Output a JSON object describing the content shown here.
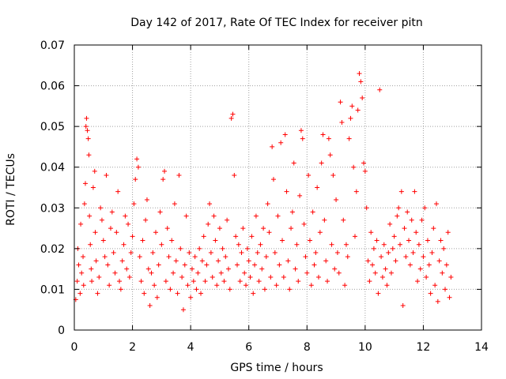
{
  "chart_data": {
    "type": "scatter",
    "title": "Day 142 of 2017, Rate Of TEC Index for receiver pitn",
    "xlabel": "GPS time / hours",
    "ylabel": "ROTI / TECUs",
    "xlim": [
      0,
      14
    ],
    "ylim": [
      0,
      0.07
    ],
    "grid": true,
    "marker": "+",
    "colors": {
      "points": "#ff0000",
      "grid": "#a0a0a0",
      "axes": "#000000"
    },
    "xticks": [
      {
        "value": 0,
        "label": "0"
      },
      {
        "value": 2,
        "label": "2"
      },
      {
        "value": 4,
        "label": "4"
      },
      {
        "value": 6,
        "label": "6"
      },
      {
        "value": 8,
        "label": "8"
      },
      {
        "value": 10,
        "label": "10"
      },
      {
        "value": 12,
        "label": "12"
      },
      {
        "value": 14,
        "label": "14"
      }
    ],
    "yticks": [
      {
        "value": 0,
        "label": "0"
      },
      {
        "value": 0.01,
        "label": "0.01"
      },
      {
        "value": 0.02,
        "label": "0.02"
      },
      {
        "value": 0.03,
        "label": "0.03"
      },
      {
        "value": 0.04,
        "label": "0.04"
      },
      {
        "value": 0.05,
        "label": "0.05"
      },
      {
        "value": 0.06,
        "label": "0.06"
      },
      {
        "value": 0.07,
        "label": "0.07"
      }
    ],
    "series": [
      {
        "name": "ROTI",
        "points": [
          [
            0.05,
            0.0075
          ],
          [
            0.1,
            0.012
          ],
          [
            0.12,
            0.02
          ],
          [
            0.15,
            0.016
          ],
          [
            0.2,
            0.009
          ],
          [
            0.22,
            0.026
          ],
          [
            0.25,
            0.014
          ],
          [
            0.3,
            0.018
          ],
          [
            0.32,
            0.011
          ],
          [
            0.35,
            0.031
          ],
          [
            0.38,
            0.036
          ],
          [
            0.4,
            0.05
          ],
          [
            0.42,
            0.052
          ],
          [
            0.45,
            0.049
          ],
          [
            0.48,
            0.047
          ],
          [
            0.5,
            0.043
          ],
          [
            0.52,
            0.028
          ],
          [
            0.55,
            0.021
          ],
          [
            0.58,
            0.015
          ],
          [
            0.6,
            0.012
          ],
          [
            0.65,
            0.035
          ],
          [
            0.7,
            0.039
          ],
          [
            0.72,
            0.024
          ],
          [
            0.75,
            0.017
          ],
          [
            0.8,
            0.009
          ],
          [
            0.85,
            0.013
          ],
          [
            0.9,
            0.03
          ],
          [
            0.95,
            0.027
          ],
          [
            1.0,
            0.022
          ],
          [
            1.05,
            0.018
          ],
          [
            1.1,
            0.038
          ],
          [
            1.15,
            0.016
          ],
          [
            1.2,
            0.011
          ],
          [
            1.25,
            0.025
          ],
          [
            1.3,
            0.029
          ],
          [
            1.35,
            0.019
          ],
          [
            1.4,
            0.014
          ],
          [
            1.45,
            0.024
          ],
          [
            1.5,
            0.034
          ],
          [
            1.55,
            0.012
          ],
          [
            1.6,
            0.01
          ],
          [
            1.65,
            0.017
          ],
          [
            1.7,
            0.021
          ],
          [
            1.75,
            0.028
          ],
          [
            1.8,
            0.015
          ],
          [
            1.85,
            0.026
          ],
          [
            1.9,
            0.013
          ],
          [
            1.95,
            0.019
          ],
          [
            2.0,
            0.023
          ],
          [
            2.05,
            0.031
          ],
          [
            2.1,
            0.037
          ],
          [
            2.15,
            0.042
          ],
          [
            2.2,
            0.04
          ],
          [
            2.25,
            0.018
          ],
          [
            2.3,
            0.012
          ],
          [
            2.35,
            0.022
          ],
          [
            2.4,
            0.009
          ],
          [
            2.45,
            0.027
          ],
          [
            2.5,
            0.032
          ],
          [
            2.55,
            0.015
          ],
          [
            2.6,
            0.006
          ],
          [
            2.65,
            0.014
          ],
          [
            2.7,
            0.019
          ],
          [
            2.75,
            0.011
          ],
          [
            2.8,
            0.024
          ],
          [
            2.85,
            0.008
          ],
          [
            2.9,
            0.016
          ],
          [
            2.95,
            0.029
          ],
          [
            3.0,
            0.021
          ],
          [
            3.05,
            0.037
          ],
          [
            3.1,
            0.039
          ],
          [
            3.15,
            0.012
          ],
          [
            3.2,
            0.025
          ],
          [
            3.25,
            0.018
          ],
          [
            3.3,
            0.01
          ],
          [
            3.35,
            0.022
          ],
          [
            3.4,
            0.014
          ],
          [
            3.45,
            0.031
          ],
          [
            3.5,
            0.017
          ],
          [
            3.55,
            0.009
          ],
          [
            3.6,
            0.038
          ],
          [
            3.65,
            0.02
          ],
          [
            3.7,
            0.013
          ],
          [
            3.75,
            0.005
          ],
          [
            3.8,
            0.016
          ],
          [
            3.85,
            0.028
          ],
          [
            3.9,
            0.011
          ],
          [
            3.95,
            0.019
          ],
          [
            4.0,
            0.008
          ],
          [
            4.05,
            0.015
          ],
          [
            4.1,
            0.012
          ],
          [
            4.15,
            0.018
          ],
          [
            4.2,
            0.01
          ],
          [
            4.25,
            0.014
          ],
          [
            4.3,
            0.02
          ],
          [
            4.35,
            0.009
          ],
          [
            4.4,
            0.017
          ],
          [
            4.45,
            0.023
          ],
          [
            4.5,
            0.012
          ],
          [
            4.55,
            0.016
          ],
          [
            4.6,
            0.026
          ],
          [
            4.65,
            0.031
          ],
          [
            4.7,
            0.019
          ],
          [
            4.75,
            0.013
          ],
          [
            4.8,
            0.028
          ],
          [
            4.85,
            0.022
          ],
          [
            4.9,
            0.011
          ],
          [
            4.95,
            0.017
          ],
          [
            5.0,
            0.025
          ],
          [
            5.05,
            0.014
          ],
          [
            5.1,
            0.02
          ],
          [
            5.15,
            0.012
          ],
          [
            5.2,
            0.018
          ],
          [
            5.25,
            0.027
          ],
          [
            5.3,
            0.015
          ],
          [
            5.35,
            0.01
          ],
          [
            5.4,
            0.052
          ],
          [
            5.45,
            0.053
          ],
          [
            5.5,
            0.038
          ],
          [
            5.55,
            0.023
          ],
          [
            5.6,
            0.016
          ],
          [
            5.65,
            0.021
          ],
          [
            5.7,
            0.012
          ],
          [
            5.75,
            0.019
          ],
          [
            5.8,
            0.025
          ],
          [
            5.85,
            0.014
          ],
          [
            5.9,
            0.011
          ],
          [
            5.95,
            0.02
          ],
          [
            6.0,
            0.017
          ],
          [
            6.05,
            0.013
          ],
          [
            6.1,
            0.023
          ],
          [
            6.15,
            0.009
          ],
          [
            6.2,
            0.016
          ],
          [
            6.25,
            0.028
          ],
          [
            6.3,
            0.019
          ],
          [
            6.35,
            0.012
          ],
          [
            6.4,
            0.021
          ],
          [
            6.45,
            0.015
          ],
          [
            6.5,
            0.025
          ],
          [
            6.55,
            0.01
          ],
          [
            6.6,
            0.018
          ],
          [
            6.65,
            0.031
          ],
          [
            6.7,
            0.024
          ],
          [
            6.75,
            0.013
          ],
          [
            6.8,
            0.045
          ],
          [
            6.85,
            0.037
          ],
          [
            6.9,
            0.019
          ],
          [
            6.95,
            0.011
          ],
          [
            7.0,
            0.028
          ],
          [
            7.05,
            0.016
          ],
          [
            7.1,
            0.046
          ],
          [
            7.15,
            0.022
          ],
          [
            7.2,
            0.013
          ],
          [
            7.25,
            0.048
          ],
          [
            7.3,
            0.034
          ],
          [
            7.35,
            0.017
          ],
          [
            7.4,
            0.01
          ],
          [
            7.45,
            0.025
          ],
          [
            7.5,
            0.029
          ],
          [
            7.55,
            0.041
          ],
          [
            7.6,
            0.015
          ],
          [
            7.65,
            0.021
          ],
          [
            7.7,
            0.012
          ],
          [
            7.75,
            0.033
          ],
          [
            7.8,
            0.049
          ],
          [
            7.85,
            0.047
          ],
          [
            7.9,
            0.026
          ],
          [
            7.95,
            0.018
          ],
          [
            8.0,
            0.014
          ],
          [
            8.05,
            0.038
          ],
          [
            8.1,
            0.022
          ],
          [
            8.15,
            0.011
          ],
          [
            8.2,
            0.029
          ],
          [
            8.25,
            0.016
          ],
          [
            8.3,
            0.019
          ],
          [
            8.35,
            0.035
          ],
          [
            8.4,
            0.013
          ],
          [
            8.45,
            0.024
          ],
          [
            8.5,
            0.041
          ],
          [
            8.55,
            0.048
          ],
          [
            8.6,
            0.027
          ],
          [
            8.65,
            0.017
          ],
          [
            8.7,
            0.012
          ],
          [
            8.75,
            0.047
          ],
          [
            8.8,
            0.043
          ],
          [
            8.85,
            0.021
          ],
          [
            8.9,
            0.038
          ],
          [
            8.95,
            0.015
          ],
          [
            9.0,
            0.032
          ],
          [
            9.05,
            0.019
          ],
          [
            9.1,
            0.014
          ],
          [
            9.15,
            0.056
          ],
          [
            9.2,
            0.051
          ],
          [
            9.25,
            0.027
          ],
          [
            9.3,
            0.011
          ],
          [
            9.35,
            0.021
          ],
          [
            9.4,
            0.018
          ],
          [
            9.45,
            0.047
          ],
          [
            9.5,
            0.052
          ],
          [
            9.55,
            0.055
          ],
          [
            9.6,
            0.04
          ],
          [
            9.65,
            0.023
          ],
          [
            9.7,
            0.034
          ],
          [
            9.75,
            0.054
          ],
          [
            9.8,
            0.063
          ],
          [
            9.85,
            0.061
          ],
          [
            9.9,
            0.057
          ],
          [
            9.95,
            0.041
          ],
          [
            10.0,
            0.039
          ],
          [
            10.05,
            0.03
          ],
          [
            10.1,
            0.017
          ],
          [
            10.15,
            0.012
          ],
          [
            10.2,
            0.024
          ],
          [
            10.25,
            0.016
          ],
          [
            10.3,
            0.02
          ],
          [
            10.35,
            0.014
          ],
          [
            10.4,
            0.022
          ],
          [
            10.45,
            0.009
          ],
          [
            10.5,
            0.059
          ],
          [
            10.55,
            0.018
          ],
          [
            10.6,
            0.013
          ],
          [
            10.65,
            0.021
          ],
          [
            10.7,
            0.015
          ],
          [
            10.75,
            0.011
          ],
          [
            10.8,
            0.019
          ],
          [
            10.85,
            0.026
          ],
          [
            10.9,
            0.014
          ],
          [
            10.95,
            0.02
          ],
          [
            11.0,
            0.023
          ],
          [
            11.05,
            0.017
          ],
          [
            11.1,
            0.028
          ],
          [
            11.15,
            0.03
          ],
          [
            11.2,
            0.021
          ],
          [
            11.25,
            0.034
          ],
          [
            11.3,
            0.006
          ],
          [
            11.35,
            0.025
          ],
          [
            11.4,
            0.018
          ],
          [
            11.45,
            0.029
          ],
          [
            11.5,
            0.022
          ],
          [
            11.55,
            0.016
          ],
          [
            11.6,
            0.027
          ],
          [
            11.65,
            0.019
          ],
          [
            11.7,
            0.034
          ],
          [
            11.75,
            0.024
          ],
          [
            11.8,
            0.012
          ],
          [
            11.85,
            0.021
          ],
          [
            11.9,
            0.015
          ],
          [
            11.95,
            0.027
          ],
          [
            12.0,
            0.018
          ],
          [
            12.05,
            0.03
          ],
          [
            12.1,
            0.013
          ],
          [
            12.15,
            0.022
          ],
          [
            12.2,
            0.016
          ],
          [
            12.25,
            0.009
          ],
          [
            12.3,
            0.019
          ],
          [
            12.35,
            0.025
          ],
          [
            12.4,
            0.011
          ],
          [
            12.45,
            0.031
          ],
          [
            12.5,
            0.007
          ],
          [
            12.55,
            0.017
          ],
          [
            12.6,
            0.022
          ],
          [
            12.65,
            0.014
          ],
          [
            12.7,
            0.02
          ],
          [
            12.75,
            0.01
          ],
          [
            12.8,
            0.016
          ],
          [
            12.85,
            0.024
          ],
          [
            12.9,
            0.008
          ],
          [
            12.95,
            0.013
          ]
        ]
      }
    ]
  }
}
